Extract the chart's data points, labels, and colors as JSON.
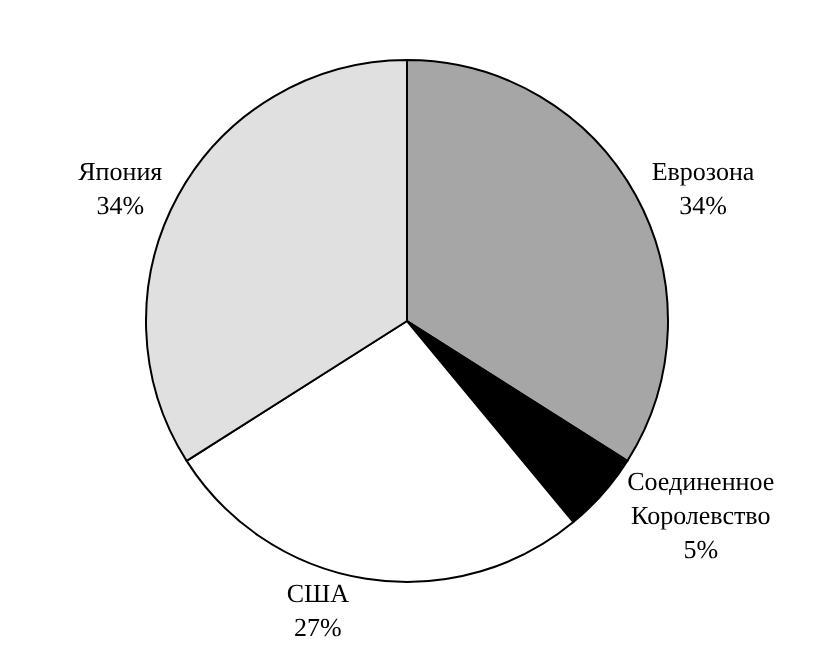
{
  "chart_data": {
    "type": "pie",
    "categories": [
      "Еврозона",
      "Соединенное Королевство",
      "США",
      "Япония"
    ],
    "values": [
      34,
      5,
      27,
      34
    ],
    "value_labels": [
      "34%",
      "5%",
      "27%",
      "34%"
    ],
    "colors": [
      "#a6a6a6",
      "#000000",
      "#ffffff",
      "#e0e0e0"
    ],
    "legend": false
  }
}
